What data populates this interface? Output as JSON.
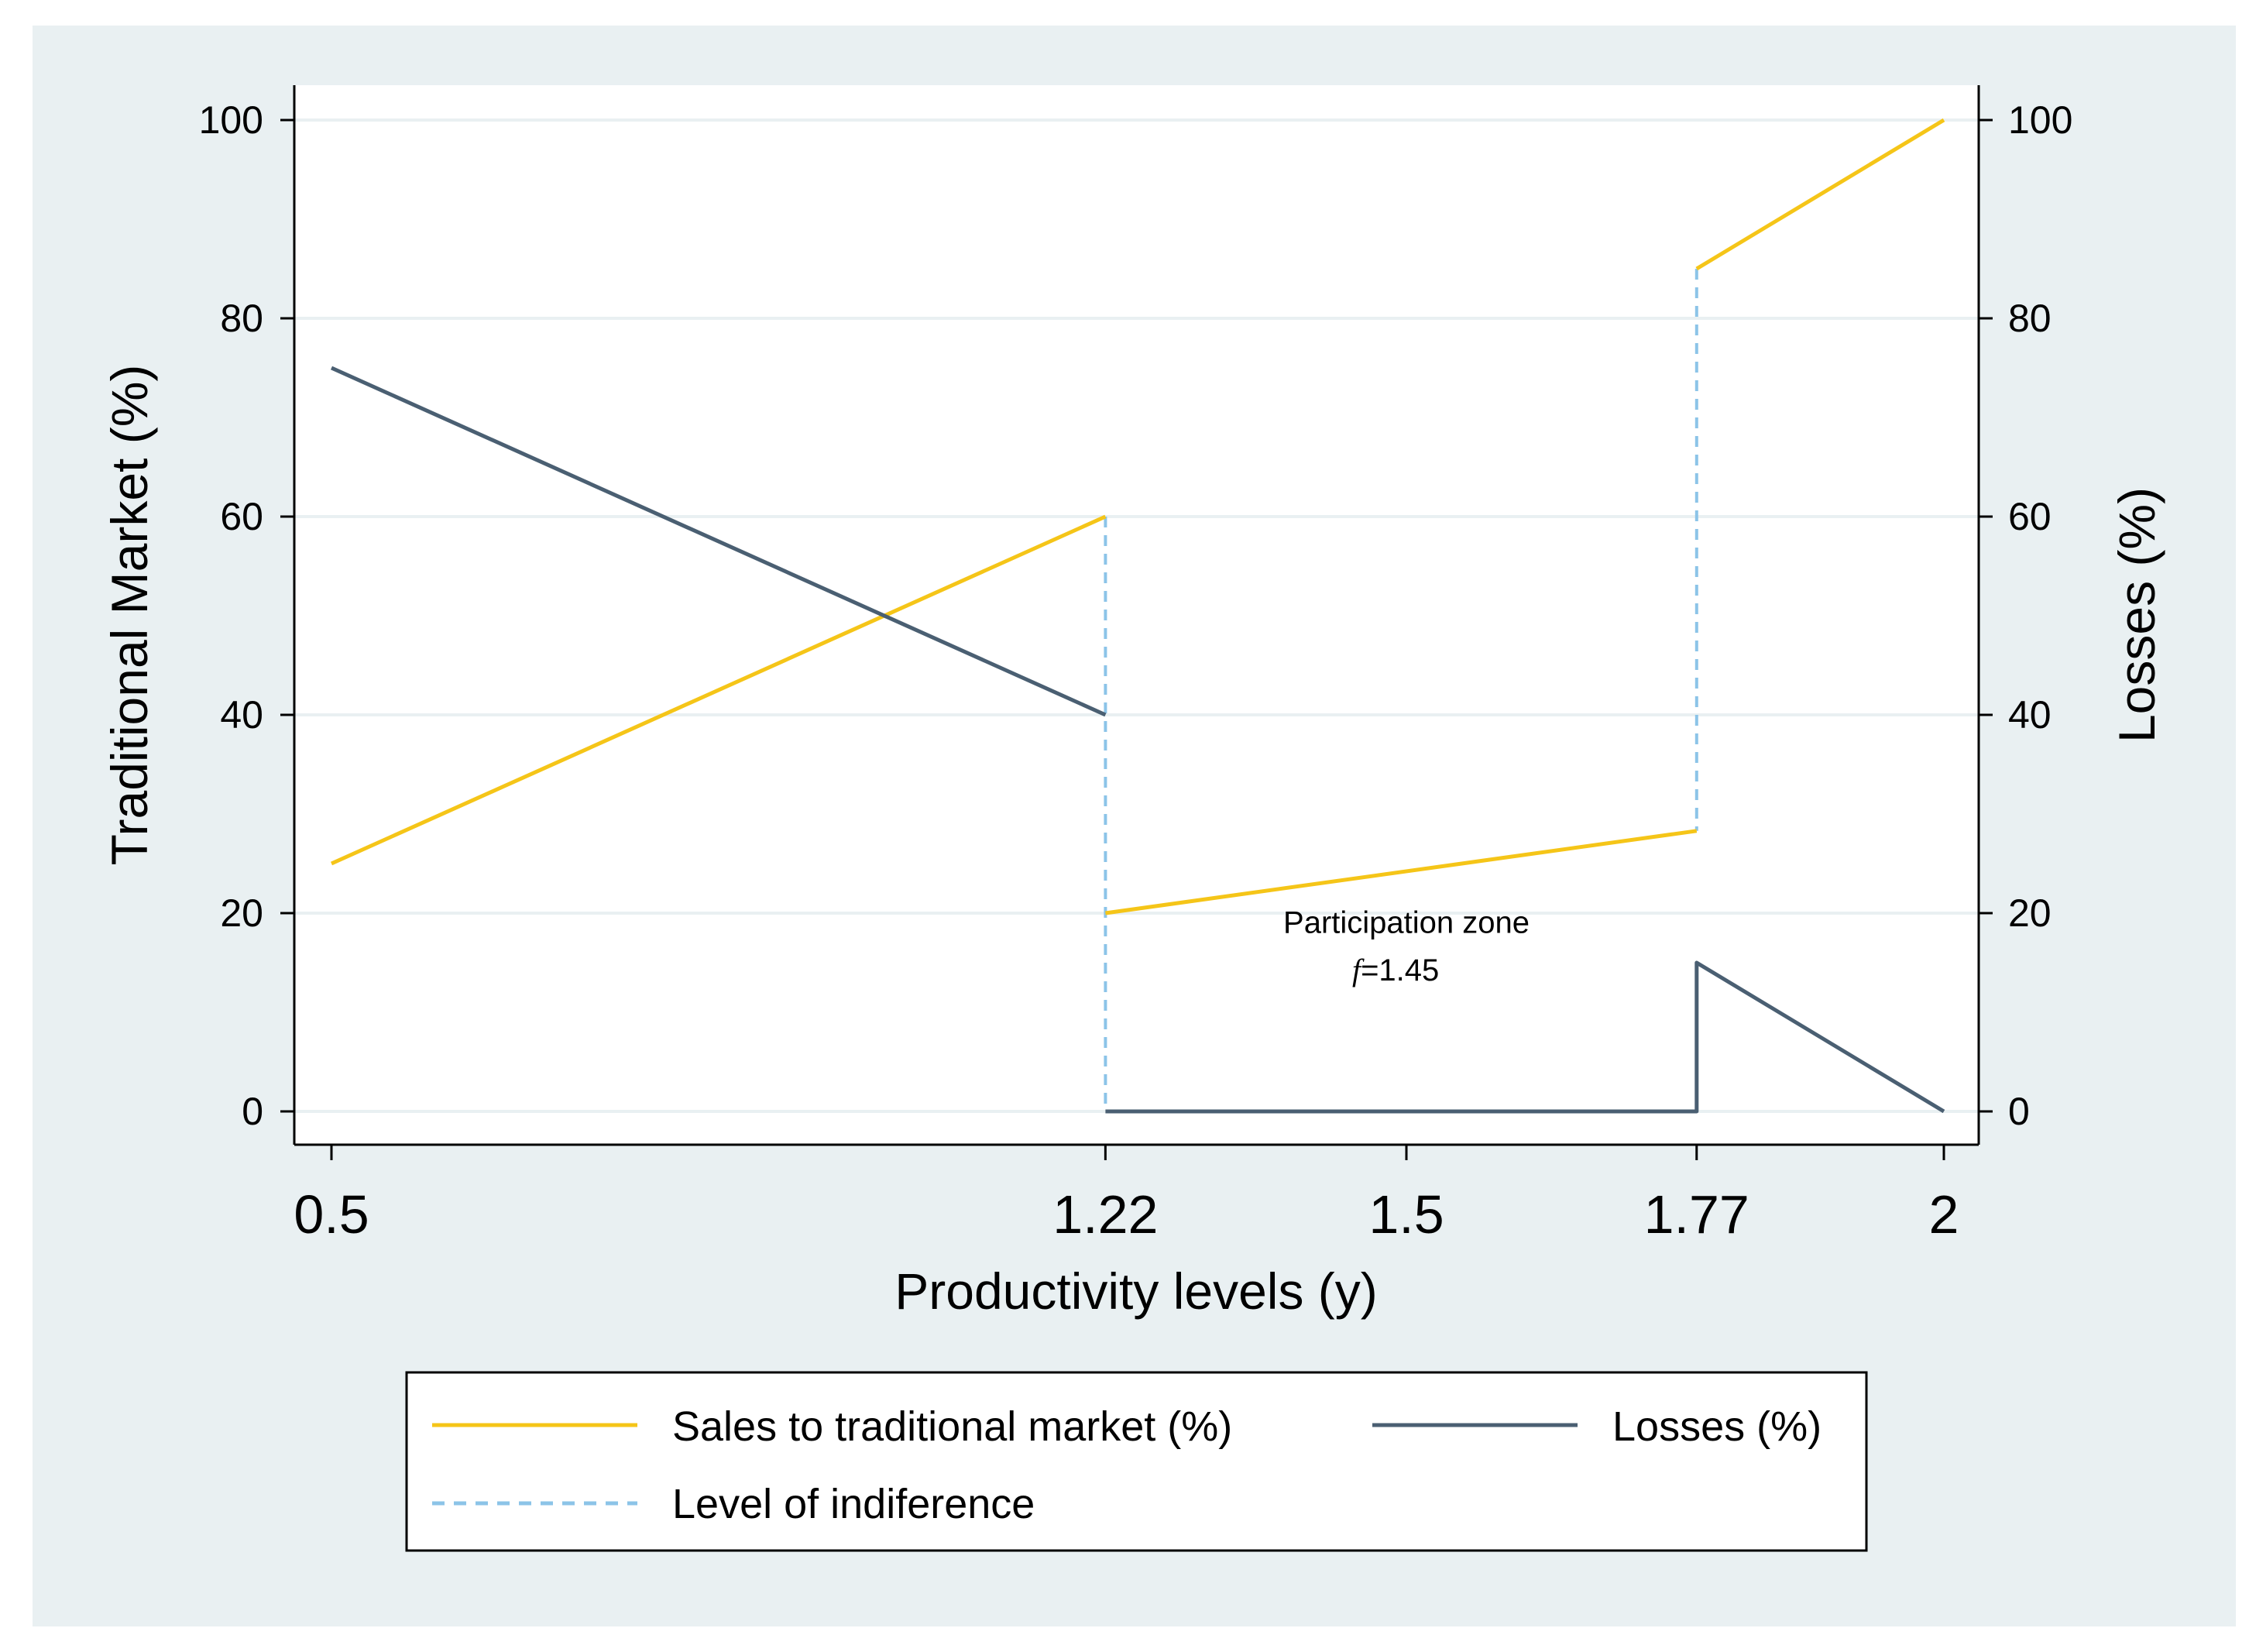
{
  "chart_data": {
    "type": "line",
    "title": "",
    "xlabel": "Productivity levels (y)",
    "ylabel_left": "Traditional Market (%)",
    "ylabel_right": "Losses (%)",
    "xlim": [
      0.5,
      2
    ],
    "ylim": [
      0,
      100
    ],
    "x_ticks": [
      0.5,
      1.22,
      1.5,
      1.77,
      2
    ],
    "x_tick_labels": [
      "0.5",
      "1.22",
      "1.5",
      "1.77",
      "2"
    ],
    "y_ticks": [
      0,
      20,
      40,
      60,
      80,
      100
    ],
    "y_tick_labels": [
      "0",
      "20",
      "40",
      "60",
      "80",
      "100"
    ],
    "grid": true,
    "series": [
      {
        "name": "Sales to traditional market (%)",
        "color": "#f5c518",
        "style": "solid",
        "segments": [
          [
            [
              0.5,
              25
            ],
            [
              1.22,
              60
            ]
          ],
          [
            [
              1.22,
              20
            ],
            [
              1.77,
              28.3
            ]
          ],
          [
            [
              1.77,
              85
            ],
            [
              2,
              100
            ]
          ]
        ]
      },
      {
        "name": "Losses (%)",
        "color": "#4a5f72",
        "style": "solid",
        "segments": [
          [
            [
              0.5,
              75
            ],
            [
              1.22,
              40
            ]
          ],
          [
            [
              1.22,
              0
            ],
            [
              1.77,
              0
            ],
            [
              1.77,
              15
            ],
            [
              2,
              0
            ]
          ]
        ]
      },
      {
        "name": "Level of indiference",
        "color": "#8cc4e8",
        "style": "dashed",
        "segments": [
          [
            [
              1.22,
              60
            ],
            [
              1.22,
              0
            ]
          ],
          [
            [
              1.77,
              85
            ],
            [
              1.77,
              28.3
            ]
          ]
        ]
      }
    ],
    "annotations": [
      {
        "text": "Participation zone",
        "x": 1.5,
        "y": 18
      },
      {
        "text": "=1.45",
        "symbol": "f",
        "x": 1.49,
        "y": 13.2
      }
    ],
    "legend_position": "bottom",
    "legend_entries": [
      "Sales to traditional market (%)",
      "Losses (%)",
      "Level of indiference"
    ],
    "colors": {
      "outer_background": "#e9f0f2",
      "plot_background": "#ffffff",
      "grid": "#e9f0f2"
    }
  }
}
